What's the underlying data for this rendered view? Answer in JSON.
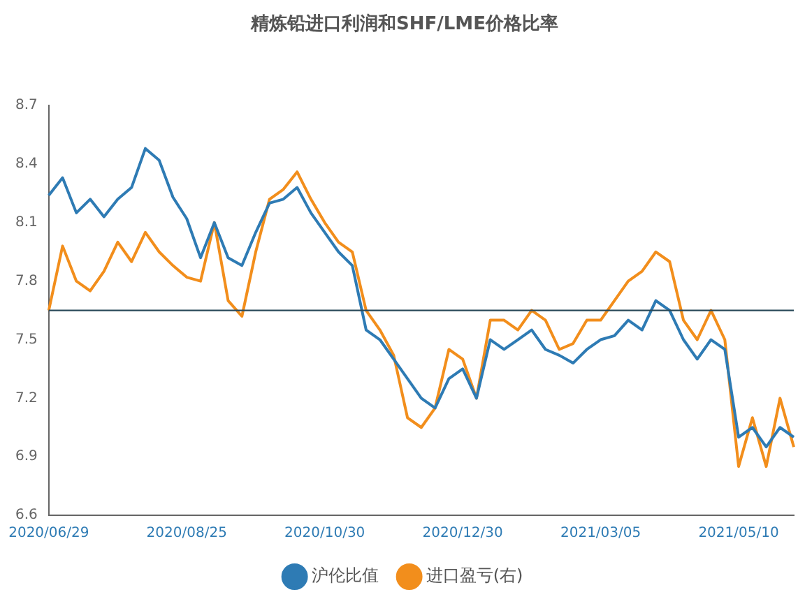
{
  "chart_data": {
    "type": "line",
    "title": "精炼铅进口利润和SHF/LME价格比率",
    "categories": [
      "2020/06/29",
      null,
      null,
      null,
      null,
      null,
      null,
      null,
      null,
      null,
      "2020/08/25",
      null,
      null,
      null,
      null,
      null,
      null,
      null,
      null,
      null,
      "2020/10/30",
      null,
      null,
      null,
      null,
      null,
      null,
      null,
      null,
      null,
      "2020/12/30",
      null,
      null,
      null,
      null,
      null,
      null,
      null,
      null,
      null,
      "2021/03/05",
      null,
      null,
      null,
      null,
      null,
      null,
      null,
      null,
      null,
      "2021/05/10",
      null,
      null,
      null,
      null
    ],
    "series": [
      {
        "name": "沪伦比值",
        "color": "#2e7bb4",
        "values": [
          8.24,
          8.33,
          8.15,
          8.22,
          8.13,
          8.22,
          8.28,
          8.48,
          8.42,
          8.23,
          8.12,
          7.92,
          8.1,
          7.92,
          7.88,
          8.05,
          8.2,
          8.22,
          8.28,
          8.15,
          8.05,
          7.95,
          7.88,
          7.55,
          7.5,
          7.4,
          7.3,
          7.2,
          7.15,
          7.3,
          7.35,
          7.2,
          7.5,
          7.45,
          7.5,
          7.55,
          7.45,
          7.42,
          7.38,
          7.45,
          7.5,
          7.52,
          7.6,
          7.55,
          7.7,
          7.65,
          7.5,
          7.4,
          7.5,
          7.45,
          7.0,
          7.05,
          6.95,
          7.05,
          7.0
        ]
      },
      {
        "name": "进口盈亏(右)",
        "color": "#f28e1c",
        "values": [
          7.65,
          7.98,
          7.8,
          7.75,
          7.85,
          8.0,
          7.9,
          8.05,
          7.95,
          7.88,
          7.82,
          7.8,
          8.1,
          7.7,
          7.62,
          7.95,
          8.22,
          8.27,
          8.36,
          8.22,
          8.1,
          8.0,
          7.95,
          7.65,
          7.55,
          7.42,
          7.1,
          7.05,
          7.15,
          7.45,
          7.4,
          7.2,
          7.6,
          7.6,
          7.55,
          7.65,
          7.6,
          7.45,
          7.48,
          7.6,
          7.6,
          7.7,
          7.8,
          7.85,
          7.95,
          7.9,
          7.6,
          7.5,
          7.65,
          7.5,
          6.85,
          7.1,
          6.85,
          7.2,
          6.95
        ]
      }
    ],
    "ylim": [
      6.6,
      8.7
    ],
    "yticks": [
      6.6,
      6.9,
      7.2,
      7.5,
      7.8,
      8.1,
      8.4,
      8.7
    ],
    "ref_lines": [
      {
        "axis": "y",
        "value": 7.65,
        "color": "#2a4a5a"
      }
    ],
    "grid": false,
    "legend": "bottom",
    "marker": "none",
    "line_style": "solid"
  }
}
